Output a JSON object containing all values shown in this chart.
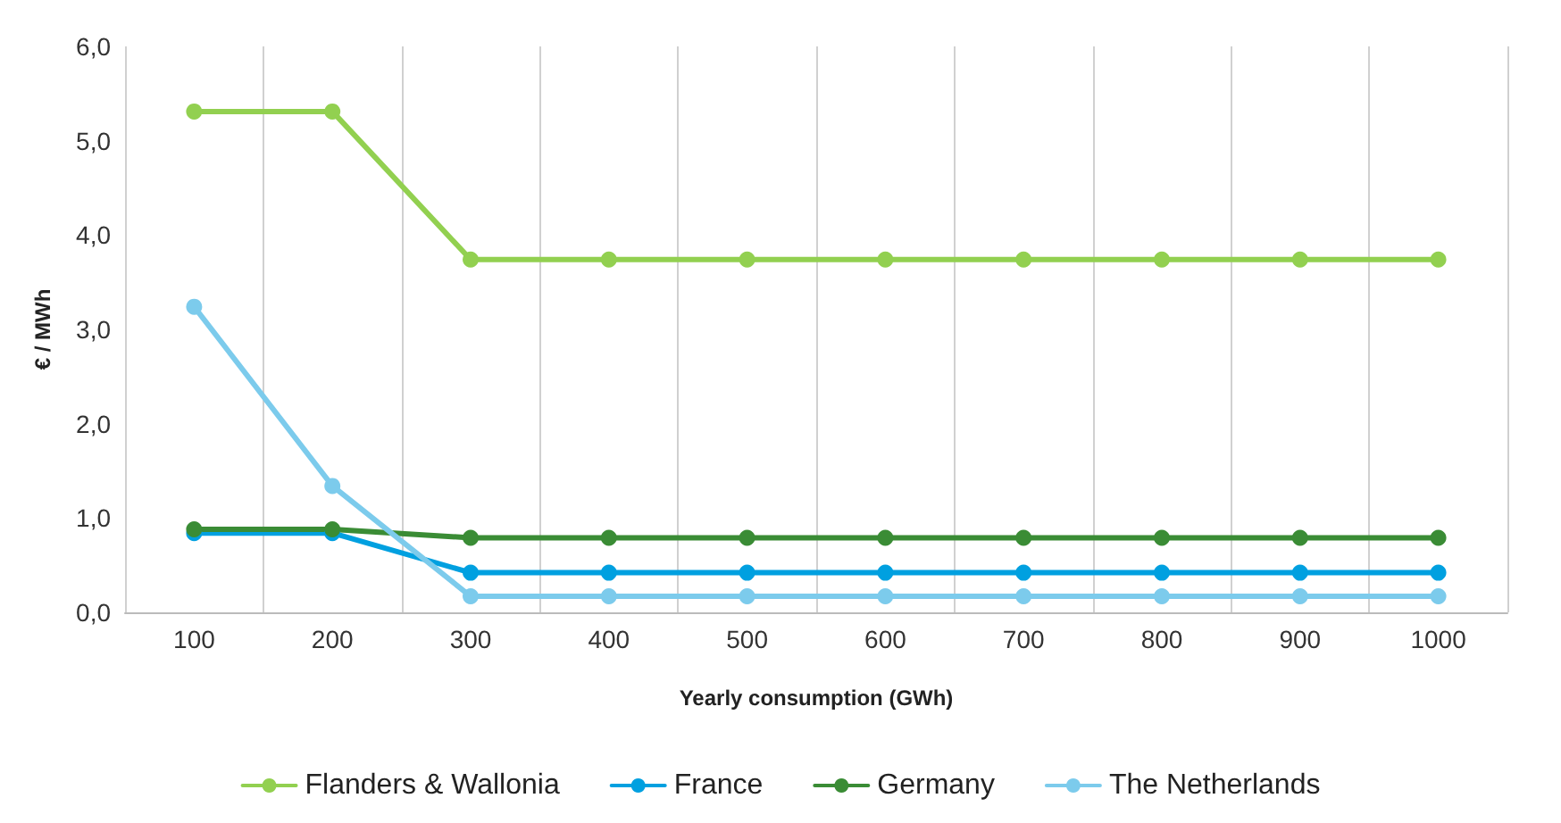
{
  "chart_data": {
    "type": "line",
    "xlabel": "Yearly consumption (GWh)",
    "ylabel": "€ / MWh",
    "categories": [
      "100",
      "200",
      "300",
      "400",
      "500",
      "600",
      "700",
      "800",
      "900",
      "1000"
    ],
    "series": [
      {
        "name": "Flanders & Wallonia",
        "color": "#92d050",
        "values": [
          5.31,
          5.31,
          3.74,
          3.74,
          3.74,
          3.74,
          3.74,
          3.74,
          3.74,
          3.74
        ]
      },
      {
        "name": "France",
        "color": "#00a0e0",
        "values": [
          0.84,
          0.84,
          0.42,
          0.42,
          0.42,
          0.42,
          0.42,
          0.42,
          0.42,
          0.42
        ]
      },
      {
        "name": "Germany",
        "color": "#3a8c35",
        "values": [
          0.88,
          0.88,
          0.79,
          0.79,
          0.79,
          0.79,
          0.79,
          0.79,
          0.79,
          0.79
        ]
      },
      {
        "name": "The Netherlands",
        "color": "#7ccbec",
        "values": [
          3.24,
          1.34,
          0.17,
          0.17,
          0.17,
          0.17,
          0.17,
          0.17,
          0.17,
          0.17
        ]
      }
    ],
    "ylim": [
      0,
      6
    ],
    "yticks": [
      {
        "value": 0,
        "label": "0,0"
      },
      {
        "value": 1,
        "label": "1,0"
      },
      {
        "value": 2,
        "label": "2,0"
      },
      {
        "value": 3,
        "label": "3,0"
      },
      {
        "value": 4,
        "label": "4,0"
      },
      {
        "value": 5,
        "label": "5,0"
      },
      {
        "value": 6,
        "label": "6,0"
      }
    ],
    "grid": "x",
    "legend": "bottom",
    "marker": "circle",
    "line_style": "solid"
  }
}
